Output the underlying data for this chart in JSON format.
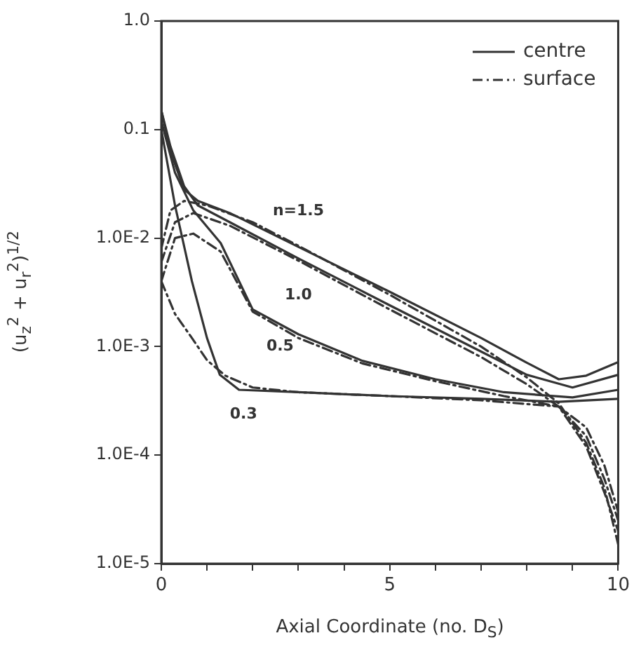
{
  "chart_data": {
    "type": "line",
    "xlabel": "Axial Coordinate (no. D$_{S}$)",
    "ylabel": "(u$_{z}$$^{2}$ + u$_{r}$$^{2}$)$^{1/2}$",
    "log": "y",
    "grid": false,
    "legend": "top right",
    "marker": "none",
    "xlim": [
      0,
      10
    ],
    "ylim": [
      1e-05,
      1
    ],
    "xticks": [
      0,
      {
        "value": 1,
        "label": null
      },
      {
        "value": 2,
        "label": null
      },
      {
        "value": 3,
        "label": null
      },
      {
        "value": 4,
        "label": null
      },
      5,
      {
        "value": 6,
        "label": null
      },
      {
        "value": 7,
        "label": null
      },
      {
        "value": 8,
        "label": null
      },
      {
        "value": 9,
        "label": null
      },
      10
    ],
    "yticks": [
      {
        "value": 1e-05,
        "label": "1.0E-5"
      },
      {
        "value": 0.0001,
        "label": "1.0E-4"
      },
      {
        "value": 0.001,
        "label": "1.0E-3"
      },
      {
        "value": 0.01,
        "label": "1.0E-2"
      },
      0.1,
      {
        "value": 1,
        "label": "1.0"
      }
    ],
    "series": [
      {
        "name": "centre",
        "color": "#333333",
        "line_style": "solid",
        "x": [
          0,
          0.2,
          0.5,
          0.8,
          1.5,
          3,
          5,
          7,
          8,
          8.7,
          9.3,
          10
        ],
        "values": [
          0.15,
          0.063,
          0.028,
          0.022,
          0.017,
          0.0083,
          0.0032,
          0.0012,
          0.00071,
          0.0005,
          0.00054,
          0.00072
        ]
      },
      {
        "name": "surface",
        "color": "#333333",
        "line_style": "dashed",
        "x": [
          0,
          0.2,
          0.5,
          1,
          2,
          3,
          5,
          7,
          8,
          8.7,
          9.3,
          9.7,
          10
        ],
        "values": [
          0.008,
          0.018,
          0.022,
          0.02,
          0.014,
          0.0085,
          0.003,
          0.001,
          0.00052,
          0.0003,
          0.00013,
          5e-05,
          1.5e-05
        ]
      },
      {
        "color": "#333333",
        "line_style": "solid",
        "x": [
          0,
          0.2,
          0.5,
          0.8,
          1.5,
          3,
          5,
          7,
          8,
          9,
          10
        ],
        "values": [
          0.15,
          0.07,
          0.03,
          0.02,
          0.014,
          0.0065,
          0.0024,
          0.0009,
          0.00055,
          0.00042,
          0.00055
        ]
      },
      {
        "color": "#333333",
        "line_style": "dashed",
        "x": [
          0,
          0.3,
          0.7,
          1.5,
          3,
          5,
          7,
          8,
          8.7,
          9.3,
          9.7,
          10
        ],
        "values": [
          0.006,
          0.014,
          0.017,
          0.013,
          0.0062,
          0.0022,
          0.0008,
          0.00045,
          0.00028,
          0.00012,
          4.5e-05,
          2e-05
        ]
      },
      {
        "color": "#333333",
        "line_style": "solid",
        "x": [
          0,
          0.3,
          0.7,
          1.3,
          2,
          3,
          4.4,
          6,
          7.5,
          9,
          10
        ],
        "values": [
          0.12,
          0.04,
          0.018,
          0.009,
          0.0022,
          0.0013,
          0.00074,
          0.0005,
          0.00038,
          0.00034,
          0.0004
        ]
      },
      {
        "color": "#333333",
        "line_style": "dashed",
        "x": [
          0,
          0.3,
          0.7,
          1.3,
          2,
          3,
          4.4,
          6,
          7.5,
          8.7,
          9.3,
          9.7,
          10
        ],
        "values": [
          0.004,
          0.01,
          0.011,
          0.0075,
          0.0021,
          0.0012,
          0.0007,
          0.00048,
          0.00035,
          0.00028,
          0.00015,
          6e-05,
          2.5e-05
        ]
      },
      {
        "color": "#333333",
        "line_style": "solid",
        "x": [
          0,
          0.3,
          0.67,
          1,
          1.28,
          1.7,
          3,
          5,
          7,
          8.7,
          10
        ],
        "values": [
          0.1,
          0.02,
          0.004,
          0.0012,
          0.00055,
          0.0004,
          0.00038,
          0.00035,
          0.00033,
          0.00031,
          0.00033
        ]
      },
      {
        "color": "#333333",
        "line_style": "dashed",
        "x": [
          0,
          0.3,
          0.67,
          1,
          1.4,
          2,
          3,
          5,
          7,
          8.7,
          9.3,
          9.7,
          10
        ],
        "values": [
          0.004,
          0.002,
          0.0012,
          0.00075,
          0.00054,
          0.00042,
          0.00038,
          0.00035,
          0.00032,
          0.00028,
          0.00018,
          8e-05,
          3e-05
        ]
      }
    ],
    "annotations": [
      "n=1.5",
      "1.0",
      "0.5",
      "0.3"
    ]
  }
}
